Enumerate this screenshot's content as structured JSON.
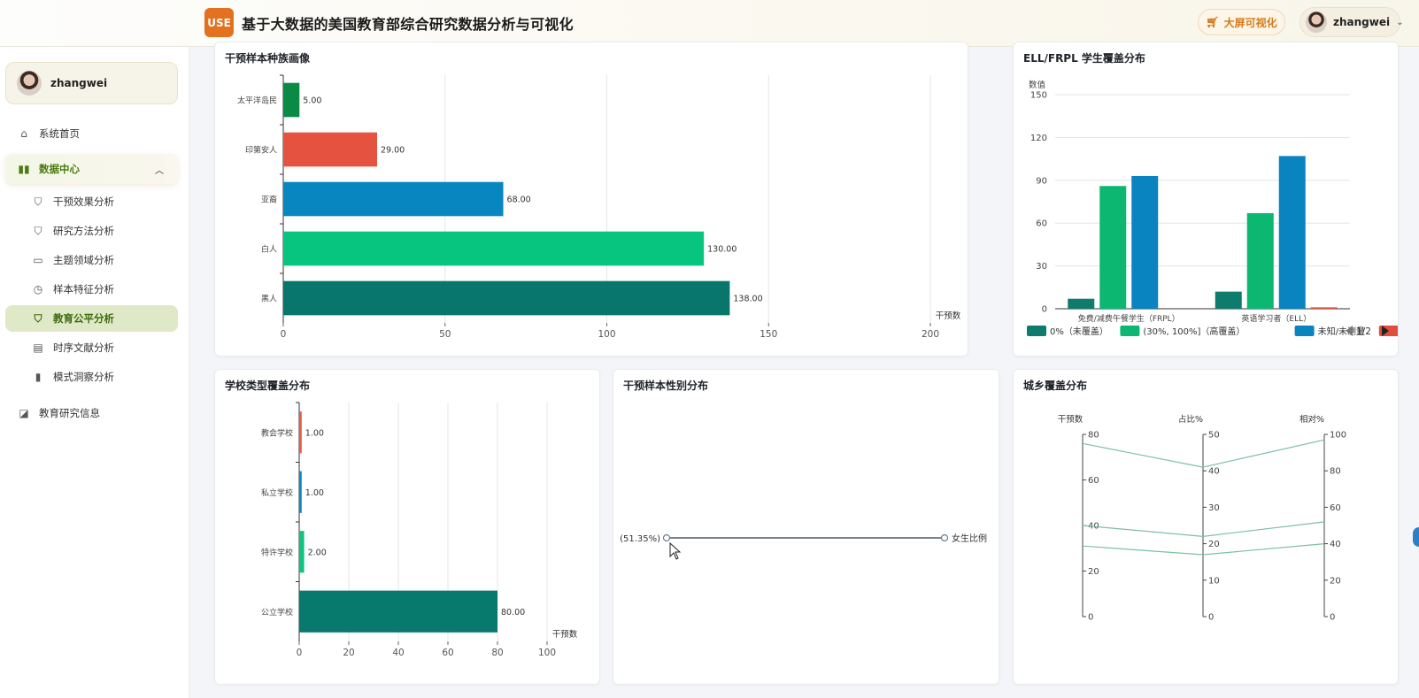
{
  "header": {
    "logo_text": "USE",
    "title": "基于大数据的美国教育部综合研究数据分析与可视化",
    "bigscreen_label": "大屏可视化",
    "username": "zhangwei"
  },
  "sidebar": {
    "username": "zhangwei",
    "items": [
      {
        "label": "系统首页",
        "icon": "home-icon"
      },
      {
        "label": "数据中心",
        "icon": "bar-chart-icon"
      },
      {
        "label": "干预效果分析",
        "icon": "cart-icon"
      },
      {
        "label": "研究方法分析",
        "icon": "cart-icon"
      },
      {
        "label": "主题领域分析",
        "icon": "box-icon"
      },
      {
        "label": "样本特征分析",
        "icon": "clock-icon"
      },
      {
        "label": "教育公平分析",
        "icon": "cart-icon"
      },
      {
        "label": "时序文献分析",
        "icon": "calendar-icon"
      },
      {
        "label": "模式洞察分析",
        "icon": "bar-chart-icon"
      },
      {
        "label": "教育研究信息",
        "icon": "trend-icon"
      }
    ]
  },
  "cards": {
    "race": {
      "title": "干预样本种族画像"
    },
    "ell": {
      "title": "ELL/FRPL 学生覆盖分布"
    },
    "school": {
      "title": "学校类型覆盖分布"
    },
    "gender": {
      "title": "干预样本性别分布"
    },
    "urban": {
      "title": "城乡覆盖分布"
    }
  },
  "chart_data": [
    {
      "id": "race",
      "type": "bar",
      "orientation": "horizontal",
      "categories": [
        "太平洋岛民",
        "印第安人",
        "亚裔",
        "白人",
        "黑人"
      ],
      "values": [
        5,
        29,
        68,
        130,
        138
      ],
      "value_labels": [
        "5.00",
        "29.00",
        "68.00",
        "130.00",
        "138.00"
      ],
      "colors": [
        "#0a8a45",
        "#e55340",
        "#0886c0",
        "#07c47e",
        "#08766a"
      ],
      "xlabel": "干预数",
      "xlim": [
        0,
        200
      ],
      "ticks": [
        "0",
        "50",
        "100",
        "150",
        "200"
      ],
      "grid": true
    },
    {
      "id": "ell",
      "type": "bar",
      "categories": [
        "免费/减费午餐学生（FRPL）",
        "英语学习者（ELL）"
      ],
      "series": [
        {
          "name": "0%（未覆盖）",
          "values": [
            7,
            12
          ],
          "color": "#0d7c6d"
        },
        {
          "name": "(30%, 100%]（高覆盖）",
          "values": [
            86,
            67
          ],
          "color": "#0cb772"
        },
        {
          "name": "未知/未测量",
          "values": [
            93,
            107
          ],
          "color": "#0a83c1"
        },
        {
          "name": "",
          "values": [
            0,
            1
          ],
          "color": "#e24c3d"
        }
      ],
      "ylabel": "数值",
      "ylim": [
        0,
        150
      ],
      "ticks": [
        "0",
        "30",
        "60",
        "90",
        "120",
        "150"
      ],
      "legend_position": "bottom",
      "legend_page": "1/2",
      "grid": true
    },
    {
      "id": "school",
      "type": "bar",
      "orientation": "horizontal",
      "categories": [
        "教会学校",
        "私立学校",
        "特许学校",
        "公立学校"
      ],
      "values": [
        1,
        1,
        2,
        80
      ],
      "value_labels": [
        "1.00",
        "1.00",
        "2.00",
        "80.00"
      ],
      "colors": [
        "#e25f46",
        "#0b89c2",
        "#10c47f",
        "#08796d"
      ],
      "xlabel": "干预数",
      "xlim": [
        0,
        100
      ],
      "ticks": [
        "0",
        "20",
        "40",
        "60",
        "80",
        "100"
      ],
      "grid": true
    },
    {
      "id": "gender",
      "type": "line",
      "points": [
        {
          "label": "(51.35%)"
        },
        {
          "label": "女生比例"
        }
      ]
    },
    {
      "id": "urban",
      "type": "parallel",
      "axes": [
        {
          "name": "干预数",
          "min": 0,
          "max": 80,
          "ticks": [
            "0",
            "20",
            "40",
            "60",
            "80"
          ]
        },
        {
          "name": "占比%",
          "min": 0,
          "max": 50,
          "ticks": [
            "0",
            "10",
            "20",
            "30",
            "40",
            "50"
          ]
        },
        {
          "name": "相对%",
          "min": 0,
          "max": 100,
          "ticks": [
            "0",
            "20",
            "40",
            "60",
            "80",
            "100"
          ]
        }
      ],
      "lines": [
        [
          76,
          41,
          97
        ],
        [
          40,
          22,
          52
        ],
        [
          31,
          17,
          40
        ]
      ],
      "color": "#7cc0a0"
    }
  ]
}
